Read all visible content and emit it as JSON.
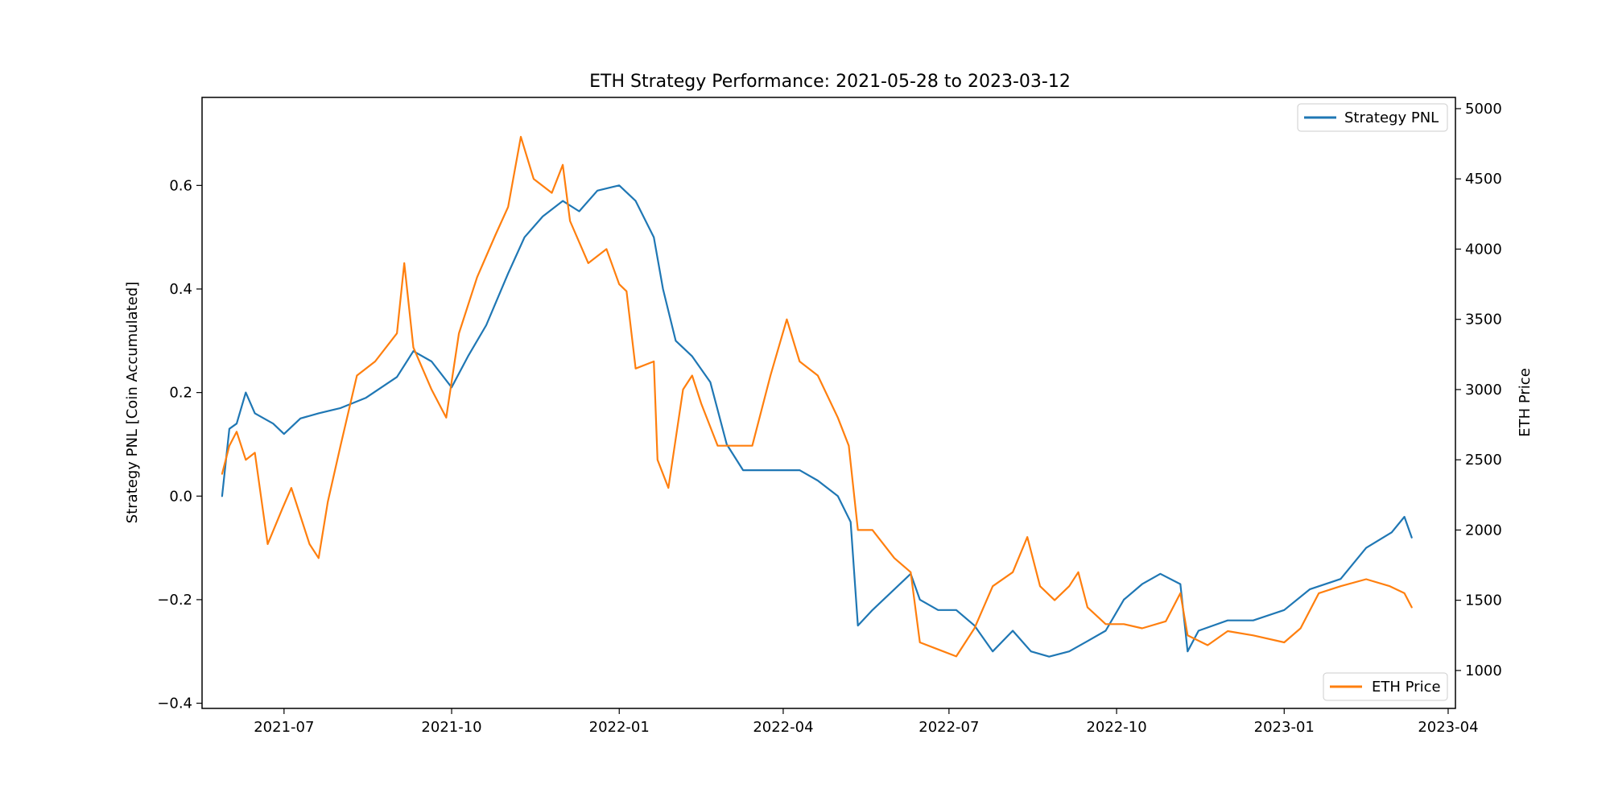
{
  "chart_data": {
    "type": "line",
    "title": "ETH Strategy Performance: 2021-05-28 to 2023-03-12",
    "left_axis": {
      "label": "Strategy PNL [Coin Accumulated]",
      "ylim": [
        -0.41,
        0.77
      ],
      "ticks": [
        -0.4,
        -0.2,
        0.0,
        0.2,
        0.4,
        0.6
      ],
      "tick_labels": [
        "−0.4",
        "−0.2",
        "0.0",
        "0.2",
        "0.4",
        "0.6"
      ]
    },
    "right_axis": {
      "label": "ETH Price",
      "ylim": [
        730,
        5080
      ],
      "ticks": [
        1000,
        1500,
        2000,
        2500,
        3000,
        3500,
        4000,
        4500,
        5000
      ],
      "tick_labels": [
        "1000",
        "1500",
        "2000",
        "2500",
        "3000",
        "3500",
        "4000",
        "4500",
        "5000"
      ]
    },
    "x_axis": {
      "xlim": [
        "2021-05-17",
        "2023-04-05"
      ],
      "ticks": [
        "2021-07-01",
        "2021-10-01",
        "2022-01-01",
        "2022-04-01",
        "2022-07-01",
        "2022-10-01",
        "2023-01-01",
        "2023-04-01"
      ],
      "tick_labels": [
        "2021-07",
        "2021-10",
        "2022-01",
        "2022-04",
        "2022-07",
        "2022-10",
        "2023-01",
        "2023-04"
      ]
    },
    "grid": false,
    "series": [
      {
        "name": "Strategy PNL",
        "axis": "left",
        "color": "#1f77b4",
        "legend_position": "upper right",
        "points": [
          [
            "2021-05-28",
            0.0
          ],
          [
            "2021-06-01",
            0.13
          ],
          [
            "2021-06-05",
            0.14
          ],
          [
            "2021-06-10",
            0.2
          ],
          [
            "2021-06-15",
            0.16
          ],
          [
            "2021-06-20",
            0.15
          ],
          [
            "2021-06-25",
            0.14
          ],
          [
            "2021-07-01",
            0.12
          ],
          [
            "2021-07-10",
            0.15
          ],
          [
            "2021-07-20",
            0.16
          ],
          [
            "2021-08-01",
            0.17
          ],
          [
            "2021-08-15",
            0.19
          ],
          [
            "2021-09-01",
            0.23
          ],
          [
            "2021-09-10",
            0.28
          ],
          [
            "2021-09-20",
            0.26
          ],
          [
            "2021-10-01",
            0.21
          ],
          [
            "2021-10-10",
            0.27
          ],
          [
            "2021-10-20",
            0.33
          ],
          [
            "2021-11-01",
            0.43
          ],
          [
            "2021-11-10",
            0.5
          ],
          [
            "2021-11-20",
            0.54
          ],
          [
            "2021-12-01",
            0.57
          ],
          [
            "2021-12-10",
            0.55
          ],
          [
            "2021-12-20",
            0.59
          ],
          [
            "2022-01-01",
            0.6
          ],
          [
            "2022-01-10",
            0.57
          ],
          [
            "2022-01-20",
            0.5
          ],
          [
            "2022-01-25",
            0.4
          ],
          [
            "2022-02-01",
            0.3
          ],
          [
            "2022-02-10",
            0.27
          ],
          [
            "2022-02-20",
            0.22
          ],
          [
            "2022-03-01",
            0.1
          ],
          [
            "2022-03-10",
            0.05
          ],
          [
            "2022-03-20",
            0.05
          ],
          [
            "2022-04-01",
            0.05
          ],
          [
            "2022-04-10",
            0.05
          ],
          [
            "2022-04-20",
            0.03
          ],
          [
            "2022-05-01",
            0.0
          ],
          [
            "2022-05-08",
            -0.05
          ],
          [
            "2022-05-12",
            -0.25
          ],
          [
            "2022-05-20",
            -0.22
          ],
          [
            "2022-06-01",
            -0.18
          ],
          [
            "2022-06-10",
            -0.15
          ],
          [
            "2022-06-15",
            -0.2
          ],
          [
            "2022-06-25",
            -0.22
          ],
          [
            "2022-07-05",
            -0.22
          ],
          [
            "2022-07-15",
            -0.25
          ],
          [
            "2022-07-25",
            -0.3
          ],
          [
            "2022-08-05",
            -0.26
          ],
          [
            "2022-08-15",
            -0.3
          ],
          [
            "2022-08-25",
            -0.31
          ],
          [
            "2022-09-05",
            -0.3
          ],
          [
            "2022-09-15",
            -0.28
          ],
          [
            "2022-09-25",
            -0.26
          ],
          [
            "2022-10-05",
            -0.2
          ],
          [
            "2022-10-15",
            -0.17
          ],
          [
            "2022-10-25",
            -0.15
          ],
          [
            "2022-11-05",
            -0.17
          ],
          [
            "2022-11-09",
            -0.3
          ],
          [
            "2022-11-15",
            -0.26
          ],
          [
            "2022-12-01",
            -0.24
          ],
          [
            "2022-12-15",
            -0.24
          ],
          [
            "2023-01-01",
            -0.22
          ],
          [
            "2023-01-15",
            -0.18
          ],
          [
            "2023-02-01",
            -0.16
          ],
          [
            "2023-02-15",
            -0.1
          ],
          [
            "2023-03-01",
            -0.07
          ],
          [
            "2023-03-08",
            -0.04
          ],
          [
            "2023-03-12",
            -0.08
          ]
        ]
      },
      {
        "name": "ETH Price",
        "axis": "right",
        "color": "#ff7f0e",
        "legend_position": "lower right",
        "points": [
          [
            "2021-05-28",
            2400
          ],
          [
            "2021-06-01",
            2600
          ],
          [
            "2021-06-05",
            2700
          ],
          [
            "2021-06-10",
            2500
          ],
          [
            "2021-06-15",
            2550
          ],
          [
            "2021-06-22",
            1900
          ],
          [
            "2021-06-30",
            2150
          ],
          [
            "2021-07-05",
            2300
          ],
          [
            "2021-07-10",
            2100
          ],
          [
            "2021-07-15",
            1900
          ],
          [
            "2021-07-20",
            1800
          ],
          [
            "2021-07-25",
            2200
          ],
          [
            "2021-08-01",
            2600
          ],
          [
            "2021-08-10",
            3100
          ],
          [
            "2021-08-20",
            3200
          ],
          [
            "2021-09-01",
            3400
          ],
          [
            "2021-09-05",
            3900
          ],
          [
            "2021-09-10",
            3300
          ],
          [
            "2021-09-20",
            3000
          ],
          [
            "2021-09-28",
            2800
          ],
          [
            "2021-10-05",
            3400
          ],
          [
            "2021-10-15",
            3800
          ],
          [
            "2021-10-25",
            4100
          ],
          [
            "2021-11-01",
            4300
          ],
          [
            "2021-11-08",
            4800
          ],
          [
            "2021-11-15",
            4500
          ],
          [
            "2021-11-25",
            4400
          ],
          [
            "2021-12-01",
            4600
          ],
          [
            "2021-12-05",
            4200
          ],
          [
            "2021-12-15",
            3900
          ],
          [
            "2021-12-25",
            4000
          ],
          [
            "2022-01-01",
            3750
          ],
          [
            "2022-01-05",
            3700
          ],
          [
            "2022-01-10",
            3150
          ],
          [
            "2022-01-20",
            3200
          ],
          [
            "2022-01-22",
            2500
          ],
          [
            "2022-01-28",
            2300
          ],
          [
            "2022-02-05",
            3000
          ],
          [
            "2022-02-10",
            3100
          ],
          [
            "2022-02-15",
            2900
          ],
          [
            "2022-02-24",
            2600
          ],
          [
            "2022-03-05",
            2600
          ],
          [
            "2022-03-15",
            2600
          ],
          [
            "2022-03-25",
            3100
          ],
          [
            "2022-04-03",
            3500
          ],
          [
            "2022-04-10",
            3200
          ],
          [
            "2022-04-20",
            3100
          ],
          [
            "2022-05-01",
            2800
          ],
          [
            "2022-05-07",
            2600
          ],
          [
            "2022-05-12",
            2000
          ],
          [
            "2022-05-20",
            2000
          ],
          [
            "2022-06-01",
            1800
          ],
          [
            "2022-06-10",
            1700
          ],
          [
            "2022-06-15",
            1200
          ],
          [
            "2022-06-25",
            1150
          ],
          [
            "2022-07-05",
            1100
          ],
          [
            "2022-07-15",
            1300
          ],
          [
            "2022-07-25",
            1600
          ],
          [
            "2022-08-05",
            1700
          ],
          [
            "2022-08-13",
            1950
          ],
          [
            "2022-08-20",
            1600
          ],
          [
            "2022-08-28",
            1500
          ],
          [
            "2022-09-05",
            1600
          ],
          [
            "2022-09-10",
            1700
          ],
          [
            "2022-09-15",
            1450
          ],
          [
            "2022-09-25",
            1330
          ],
          [
            "2022-10-05",
            1330
          ],
          [
            "2022-10-15",
            1300
          ],
          [
            "2022-10-28",
            1350
          ],
          [
            "2022-11-05",
            1550
          ],
          [
            "2022-11-09",
            1250
          ],
          [
            "2022-11-20",
            1180
          ],
          [
            "2022-12-01",
            1280
          ],
          [
            "2022-12-15",
            1250
          ],
          [
            "2023-01-01",
            1200
          ],
          [
            "2023-01-10",
            1300
          ],
          [
            "2023-01-20",
            1550
          ],
          [
            "2023-02-01",
            1600
          ],
          [
            "2023-02-15",
            1650
          ],
          [
            "2023-02-28",
            1600
          ],
          [
            "2023-03-08",
            1550
          ],
          [
            "2023-03-12",
            1450
          ]
        ]
      }
    ]
  }
}
